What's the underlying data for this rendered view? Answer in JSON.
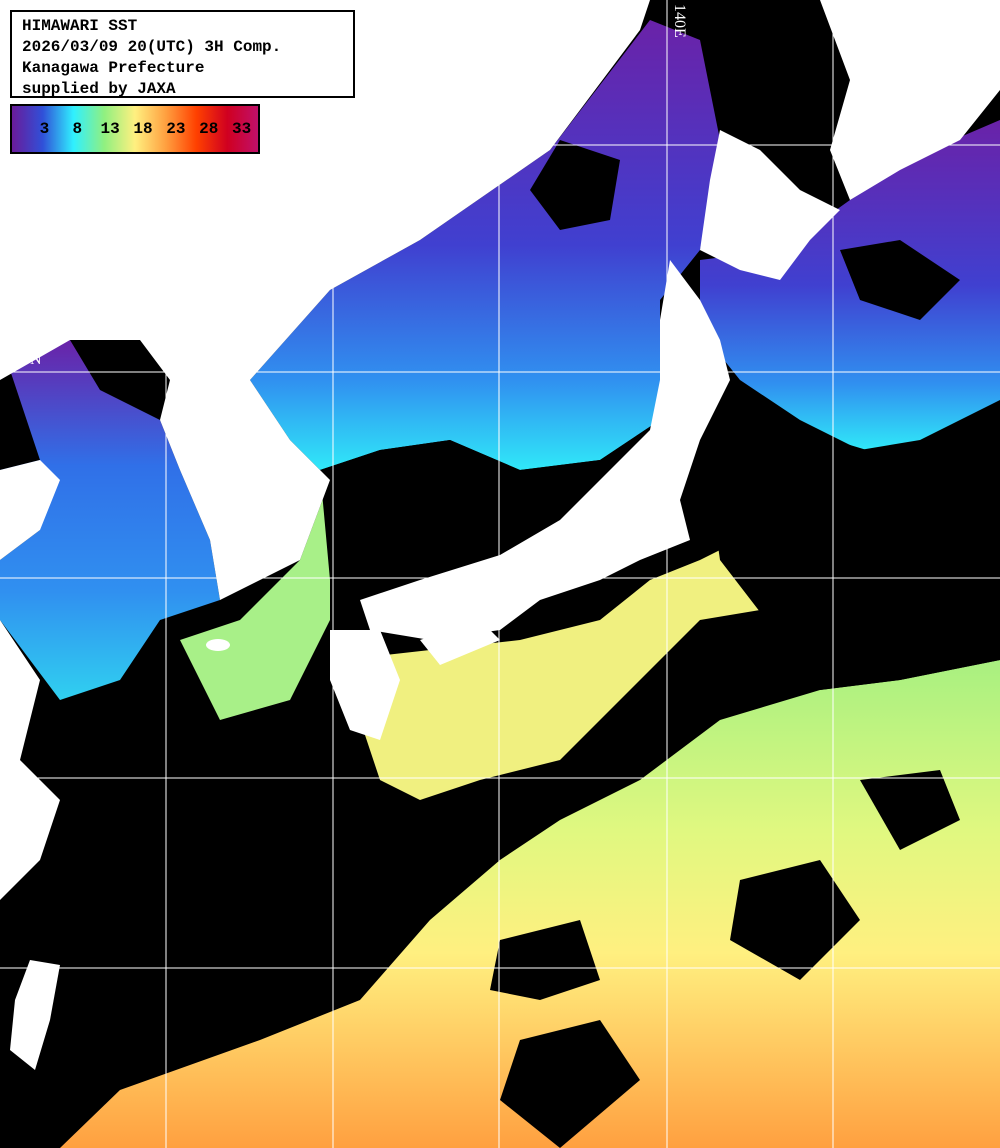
{
  "header": {
    "lines": [
      "HIMAWARI SST",
      "2026/03/09 20(UTC) 3H Comp.",
      "Kanagawa Prefecture",
      "supplied by JAXA"
    ]
  },
  "legend": {
    "ticks": [
      "3",
      "8",
      "13",
      "18",
      "23",
      "28",
      "33"
    ],
    "colors": [
      "#6a1b9a",
      "#3050d8",
      "#30f0ff",
      "#90f080",
      "#fff080",
      "#ffa040",
      "#ff4000",
      "#d00020",
      "#c0106a"
    ]
  },
  "grid": {
    "lat_label": "40N",
    "lon_label": "140E"
  },
  "colors": {
    "land": "#ffffff",
    "cloud": "#000000",
    "grid": "#ffffff"
  }
}
